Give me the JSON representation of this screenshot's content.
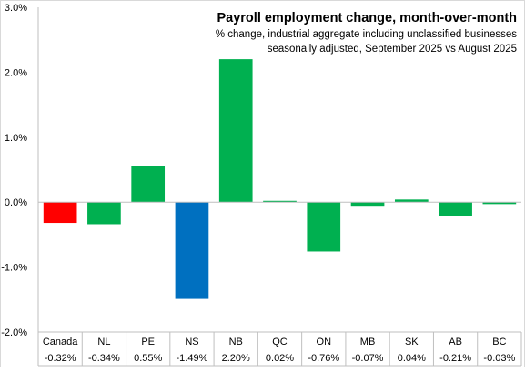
{
  "chart_data": {
    "type": "bar",
    "title": "Payroll employment change, month-over-month",
    "subtitle": [
      "% change, industrial aggregate  including unclassified businesses",
      "seasonally adjusted, September 2025 vs August 2025"
    ],
    "xlabel": "",
    "ylabel": "",
    "ylim": [
      -2.0,
      3.0
    ],
    "yticks": [
      3.0,
      2.0,
      1.0,
      0.0,
      -1.0,
      -2.0
    ],
    "ytick_labels": [
      "3.0%",
      "2.0%",
      "1.0%",
      "0.0%",
      "-1.0%",
      "-2.0%"
    ],
    "categories": [
      "Canada",
      "NL",
      "PE",
      "NS",
      "NB",
      "QC",
      "ON",
      "MB",
      "SK",
      "AB",
      "BC"
    ],
    "values": [
      -0.32,
      -0.34,
      0.55,
      -1.49,
      2.2,
      0.02,
      -0.76,
      -0.07,
      0.04,
      -0.21,
      -0.03
    ],
    "value_labels": [
      "-0.32%",
      "-0.34%",
      "0.55%",
      "-1.49%",
      "2.20%",
      "0.02%",
      "-0.76%",
      "-0.07%",
      "0.04%",
      "-0.21%",
      "-0.03%"
    ],
    "bar_colors": [
      "#ff0000",
      "#00b050",
      "#00b050",
      "#0070c0",
      "#00b050",
      "#00b050",
      "#00b050",
      "#00b050",
      "#00b050",
      "#00b050",
      "#00b050"
    ],
    "grid": false,
    "legend": "none"
  }
}
